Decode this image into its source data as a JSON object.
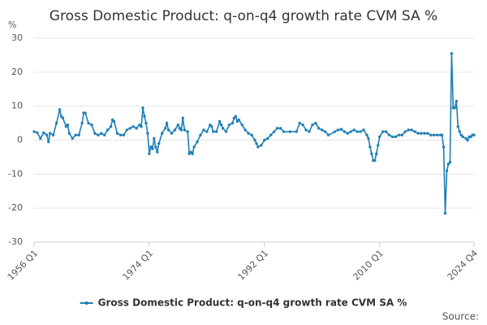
{
  "chart_data": {
    "type": "line",
    "title": "Gross Domestic Product: q-on-q4 growth rate CVM SA %",
    "y_label": "%",
    "source": "Source:",
    "x": [
      1956,
      1956.5,
      1957,
      1957.5,
      1958,
      1958.25,
      1958.5,
      1959,
      1959.5,
      1960,
      1960.25,
      1960.5,
      1961,
      1961.25,
      1961.5,
      1962,
      1962.5,
      1963,
      1963.5,
      1963.75,
      1964,
      1964.5,
      1965,
      1965.5,
      1966,
      1966.5,
      1967,
      1967.5,
      1968,
      1968.25,
      1968.5,
      1969,
      1969.5,
      1970,
      1970.5,
      1971,
      1971.5,
      1972,
      1972.5,
      1972.75,
      1973,
      1973.25,
      1973.5,
      1973.75,
      1974,
      1974.25,
      1974.5,
      1974.75,
      1975,
      1975.25,
      1975.5,
      1976,
      1976.5,
      1976.75,
      1977,
      1977.5,
      1978,
      1978.5,
      1978.75,
      1979,
      1979.25,
      1979.5,
      1980,
      1980.25,
      1980.5,
      1980.75,
      1981,
      1981.5,
      1982,
      1982.5,
      1983,
      1983.5,
      1983.75,
      1984,
      1984.5,
      1985,
      1985.25,
      1985.5,
      1986,
      1986.5,
      1987,
      1987.25,
      1987.5,
      1987.75,
      1988,
      1988.5,
      1989,
      1989.5,
      1990,
      1990.5,
      1990.75,
      1991,
      1991.5,
      1992,
      1992.5,
      1993,
      1993.5,
      1994,
      1994.5,
      1995,
      1996,
      1997,
      1997.5,
      1998,
      1998.5,
      1999,
      1999.5,
      2000,
      2000.5,
      2001,
      2001.5,
      2002,
      2003,
      2003.5,
      2004,
      2004.5,
      2005,
      2005.5,
      2006,
      2006.5,
      2007,
      2007.5,
      2008,
      2008.25,
      2008.5,
      2008.75,
      2009,
      2009.25,
      2009.5,
      2009.75,
      2010,
      2010.5,
      2011,
      2011.5,
      2012,
      2012.5,
      2013,
      2013.5,
      2014,
      2014.5,
      2015,
      2015.5,
      2016,
      2016.5,
      2017,
      2017.5,
      2018,
      2018.5,
      2019,
      2019.5,
      2019.75,
      2020,
      2020.25,
      2020.5,
      2020.75,
      2021,
      2021.25,
      2021.5,
      2021.75,
      2022,
      2022.25,
      2022.5,
      2022.75,
      2023,
      2023.5,
      2023.75,
      2024,
      2024.25,
      2024.5,
      2024.75
    ],
    "series": [
      {
        "name": "Gross Domestic Product: q-on-q4 growth rate CVM SA %",
        "color": "#1f7fb6",
        "values": [
          2.5,
          2.2,
          0.5,
          2.2,
          1.5,
          -0.5,
          2,
          1.5,
          5,
          9,
          7,
          6.5,
          4,
          4.5,
          2,
          0.5,
          1.5,
          1.5,
          5,
          8,
          8,
          5,
          4.5,
          2,
          1.5,
          2,
          1.5,
          3,
          4,
          6,
          5.5,
          2,
          1.5,
          1.5,
          3,
          3.5,
          4,
          3.5,
          4.5,
          4,
          9.5,
          7,
          5,
          2,
          -4,
          -2,
          -2.5,
          0.5,
          -2,
          -3.5,
          -1,
          2,
          3.5,
          5,
          3,
          2,
          3,
          4.5,
          3.5,
          3,
          6.5,
          3,
          2.5,
          -4,
          -3.5,
          -4,
          -2,
          -0.5,
          1.5,
          3,
          2.5,
          4.5,
          4,
          2.5,
          2.5,
          5.5,
          4.5,
          3.5,
          2.5,
          4.5,
          5,
          6.5,
          7,
          5.5,
          6,
          4.5,
          3,
          2,
          1.5,
          0,
          -1,
          -2,
          -1.5,
          0,
          0.5,
          1.5,
          2.5,
          3.5,
          3.5,
          2.5,
          2.5,
          2.5,
          5,
          4.5,
          3,
          2.5,
          4.5,
          5,
          3.5,
          3,
          2.5,
          1.5,
          2.5,
          3,
          3.2,
          2.5,
          2,
          2.5,
          3,
          2.5,
          2.5,
          3,
          1.5,
          0.5,
          -2,
          -4,
          -6,
          -6,
          -4,
          -1.5,
          1,
          2.5,
          2.5,
          1.5,
          1,
          1,
          1.5,
          1.5,
          2.5,
          3,
          3,
          2.5,
          2,
          2,
          2,
          2,
          1.5,
          1.5,
          1.5,
          1.5,
          1.5,
          -2,
          -21.5,
          -9,
          -7,
          -6.5,
          25.5,
          9.5,
          9.5,
          11.5,
          4,
          2.5,
          1.5,
          1,
          0.5,
          0,
          1,
          1,
          1.5,
          1.5
        ]
      }
    ],
    "xlim": [
      1956,
      2024.75
    ],
    "xticks": [
      {
        "value": 1956,
        "label": "1956 Q1"
      },
      {
        "value": 1974,
        "label": "1974 Q1"
      },
      {
        "value": 1992,
        "label": "1992 Q1"
      },
      {
        "value": 2010,
        "label": "2010 Q1"
      },
      {
        "value": 2024.75,
        "label": "2024 Q4"
      }
    ],
    "ylim": [
      -30,
      30
    ],
    "yticks": [
      -30,
      -20,
      -10,
      0,
      10,
      20,
      30
    ],
    "grid": true
  }
}
